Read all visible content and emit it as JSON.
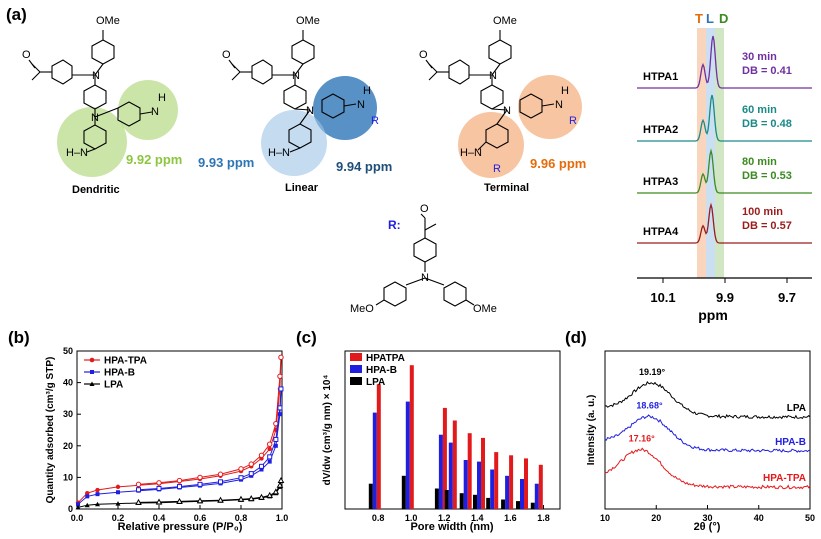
{
  "colors": {
    "dendritic_green": "#8cc63f",
    "linear_blue": "#2e75b6",
    "linear_blue_light": "#9dc3e6",
    "terminal_orange": "#e46c0a",
    "terminal_orange_light": "#f4b183",
    "purple": "#7030a0",
    "teal": "#1a8a86",
    "green": "#3c8a22",
    "darkred": "#9b1c1c",
    "red": "#e31a1c",
    "blue": "#1f1fe0",
    "black": "#000000",
    "band_T": "#f8cbad",
    "band_L": "#bdd7ee",
    "band_D": "#c5e0b4"
  },
  "panel_a": {
    "label": "(a)",
    "structures": [
      {
        "name": "Dendritic",
        "ppm": "9.92 ppm",
        "color": "#8cc63f"
      },
      {
        "name": "Linear",
        "ppm_left": "9.93 ppm",
        "ppm_right": "9.94 ppm",
        "color": "#2e75b6"
      },
      {
        "name": "Terminal",
        "ppm": "9.96 ppm",
        "color": "#e46c0a"
      }
    ],
    "atom_labels": {
      "ome": "OMe",
      "n": "N",
      "h": "H",
      "r": "R"
    },
    "r_group": {
      "label": "R:",
      "meo_left": "MeO",
      "ome_right": "OMe"
    },
    "nmr": {
      "band_labels": [
        "T",
        "L",
        "D"
      ],
      "xlabel": "ppm",
      "ticks": [
        "10.1",
        "9.9",
        "9.7"
      ],
      "samples": [
        {
          "name": "HTPA1",
          "time": "30 min",
          "db": "DB = 0.41",
          "color": "#7030a0"
        },
        {
          "name": "HTPA2",
          "time": "60 min",
          "db": "DB = 0.48",
          "color": "#1a8a86"
        },
        {
          "name": "HTPA3",
          "time": "80 min",
          "db": "DB = 0.53",
          "color": "#3c8a22"
        },
        {
          "name": "HTPA4",
          "time": "100 min",
          "db": "DB = 0.57",
          "color": "#9b1c1c"
        }
      ]
    }
  },
  "chart_data": [
    {
      "panel": "(b)",
      "type": "line",
      "xlabel": "Relative pressure (P/P₀)",
      "ylabel": "Quantity adsorbed (cm³/g STP)",
      "xlim": [
        0,
        1.0
      ],
      "ylim": [
        0,
        50
      ],
      "xticks": [
        "0.0",
        "0.2",
        "0.4",
        "0.6",
        "0.8",
        "1.0"
      ],
      "yticks": [
        "0",
        "10",
        "20",
        "30",
        "40",
        "50"
      ],
      "legend": "top-left",
      "series": [
        {
          "name": "HPA-TPA",
          "color": "#e31a1c",
          "marker": "circle",
          "x": [
            0.005,
            0.05,
            0.1,
            0.2,
            0.3,
            0.4,
            0.5,
            0.6,
            0.7,
            0.8,
            0.85,
            0.9,
            0.94,
            0.97,
            0.99,
            0.995
          ],
          "y": [
            2,
            5,
            6,
            7,
            7.5,
            8,
            8.7,
            9.5,
            10.5,
            12,
            13.5,
            16,
            19,
            25,
            38,
            48
          ],
          "desorption_y": [
            null,
            null,
            null,
            null,
            7.8,
            8.3,
            9,
            10,
            11,
            12.7,
            14.2,
            17,
            20.5,
            27,
            42,
            48
          ]
        },
        {
          "name": "HPA-B",
          "color": "#1f1fe0",
          "marker": "square",
          "x": [
            0.005,
            0.05,
            0.1,
            0.2,
            0.3,
            0.4,
            0.5,
            0.6,
            0.7,
            0.8,
            0.85,
            0.9,
            0.94,
            0.97,
            0.99,
            0.995
          ],
          "y": [
            1.5,
            4,
            4.7,
            5.3,
            5.8,
            6.2,
            6.8,
            7.4,
            8.1,
            9.3,
            10.5,
            12.5,
            15,
            20,
            30,
            38
          ],
          "desorption_y": [
            null,
            null,
            null,
            null,
            6.1,
            6.5,
            7.1,
            7.8,
            8.6,
            9.9,
            11.2,
            13.5,
            16.5,
            22,
            32,
            38
          ]
        },
        {
          "name": "LPA",
          "color": "#000000",
          "marker": "triangle",
          "x": [
            0.005,
            0.05,
            0.1,
            0.2,
            0.3,
            0.4,
            0.5,
            0.6,
            0.7,
            0.8,
            0.85,
            0.9,
            0.94,
            0.97,
            0.99,
            0.995
          ],
          "y": [
            0.5,
            1.2,
            1.5,
            1.7,
            1.9,
            2.0,
            2.2,
            2.4,
            2.6,
            2.9,
            3.1,
            3.5,
            4,
            5,
            7,
            9
          ],
          "desorption_y": [
            null,
            null,
            null,
            null,
            2.1,
            2.2,
            2.4,
            2.6,
            2.8,
            3.1,
            3.3,
            3.7,
            4.3,
            5.4,
            7.5,
            9
          ]
        }
      ]
    },
    {
      "panel": "(c)",
      "type": "bar",
      "xlabel": "Pore width (nm)",
      "ylabel": "dV/dw (cm³/g nm) × 10⁴",
      "xlim": [
        0.6,
        1.9
      ],
      "ylim": [
        0,
        10
      ],
      "xticks": [
        "0.8",
        "1.0",
        "1.2",
        "1.4",
        "1.6",
        "1.8"
      ],
      "legend": "top-left",
      "categories": [
        0.78,
        0.98,
        1.18,
        1.24,
        1.33,
        1.41,
        1.49,
        1.58,
        1.67,
        1.76
      ],
      "series": [
        {
          "name": "HPATPA",
          "color": "#e31a1c",
          "values": [
            7.9,
            9.1,
            6.4,
            5.6,
            4.8,
            4.5,
            3.6,
            3.4,
            3.2,
            2.8
          ]
        },
        {
          "name": "HPA-B",
          "color": "#1f1fe0",
          "values": [
            6.1,
            6.8,
            4.7,
            4.2,
            3.1,
            3.0,
            2.5,
            2.1,
            1.9,
            1.6
          ]
        },
        {
          "name": "LPA",
          "color": "#000000",
          "values": [
            1.6,
            2.1,
            1.3,
            1.2,
            1.0,
            0.9,
            0.7,
            0.6,
            0.5,
            0.4
          ]
        }
      ]
    },
    {
      "panel": "(d)",
      "type": "line",
      "xlabel": "2θ (°)",
      "ylabel": "Intensity (a. u.)",
      "xlim": [
        10,
        50
      ],
      "xticks": [
        "10",
        "20",
        "30",
        "40",
        "50"
      ],
      "series": [
        {
          "name": "LPA",
          "color": "#000000",
          "peak": "19.19°",
          "peak_x": 19.19,
          "baseline": 3.0,
          "height": 1.2
        },
        {
          "name": "HPA-B",
          "color": "#1f1fe0",
          "peak": "18.68°",
          "peak_x": 18.68,
          "baseline": 1.7,
          "height": 1.2
        },
        {
          "name": "HPA-TPA",
          "color": "#e31a1c",
          "peak": "17.16°",
          "peak_x": 17.16,
          "baseline": 0.3,
          "height": 1.3
        }
      ]
    }
  ]
}
